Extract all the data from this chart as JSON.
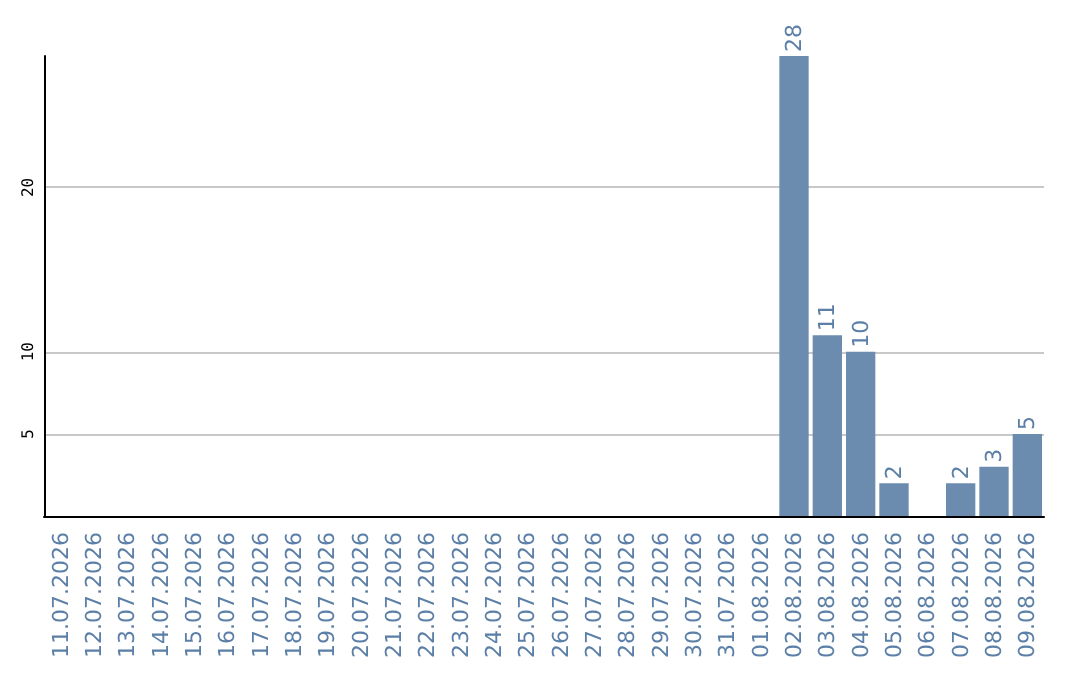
{
  "chart_data": {
    "type": "bar",
    "categories": [
      "11.07.2026",
      "12.07.2026",
      "13.07.2026",
      "14.07.2026",
      "15.07.2026",
      "16.07.2026",
      "17.07.2026",
      "18.07.2026",
      "19.07.2026",
      "20.07.2026",
      "21.07.2026",
      "22.07.2026",
      "23.07.2026",
      "24.07.2026",
      "25.07.2026",
      "26.07.2026",
      "27.07.2026",
      "28.07.2026",
      "29.07.2026",
      "30.07.2026",
      "31.07.2026",
      "01.08.2026",
      "02.08.2026",
      "03.08.2026",
      "04.08.2026",
      "05.08.2026",
      "06.08.2026",
      "07.08.2026",
      "08.08.2026",
      "09.08.2026"
    ],
    "values": [
      0,
      0,
      0,
      0,
      0,
      0,
      0,
      0,
      0,
      0,
      0,
      0,
      0,
      0,
      0,
      0,
      0,
      0,
      0,
      0,
      0,
      0,
      28,
      11,
      10,
      2,
      0,
      2,
      3,
      5
    ],
    "value_labels": [
      null,
      null,
      null,
      null,
      null,
      null,
      null,
      null,
      null,
      null,
      null,
      null,
      null,
      null,
      null,
      null,
      null,
      null,
      null,
      null,
      null,
      null,
      "28",
      "11",
      "10",
      "2",
      null,
      "2",
      "3",
      "5"
    ],
    "color": "#6b8cae",
    "ylim": [
      0,
      28
    ],
    "yticks": [
      5,
      10,
      20
    ],
    "grid": "y"
  }
}
